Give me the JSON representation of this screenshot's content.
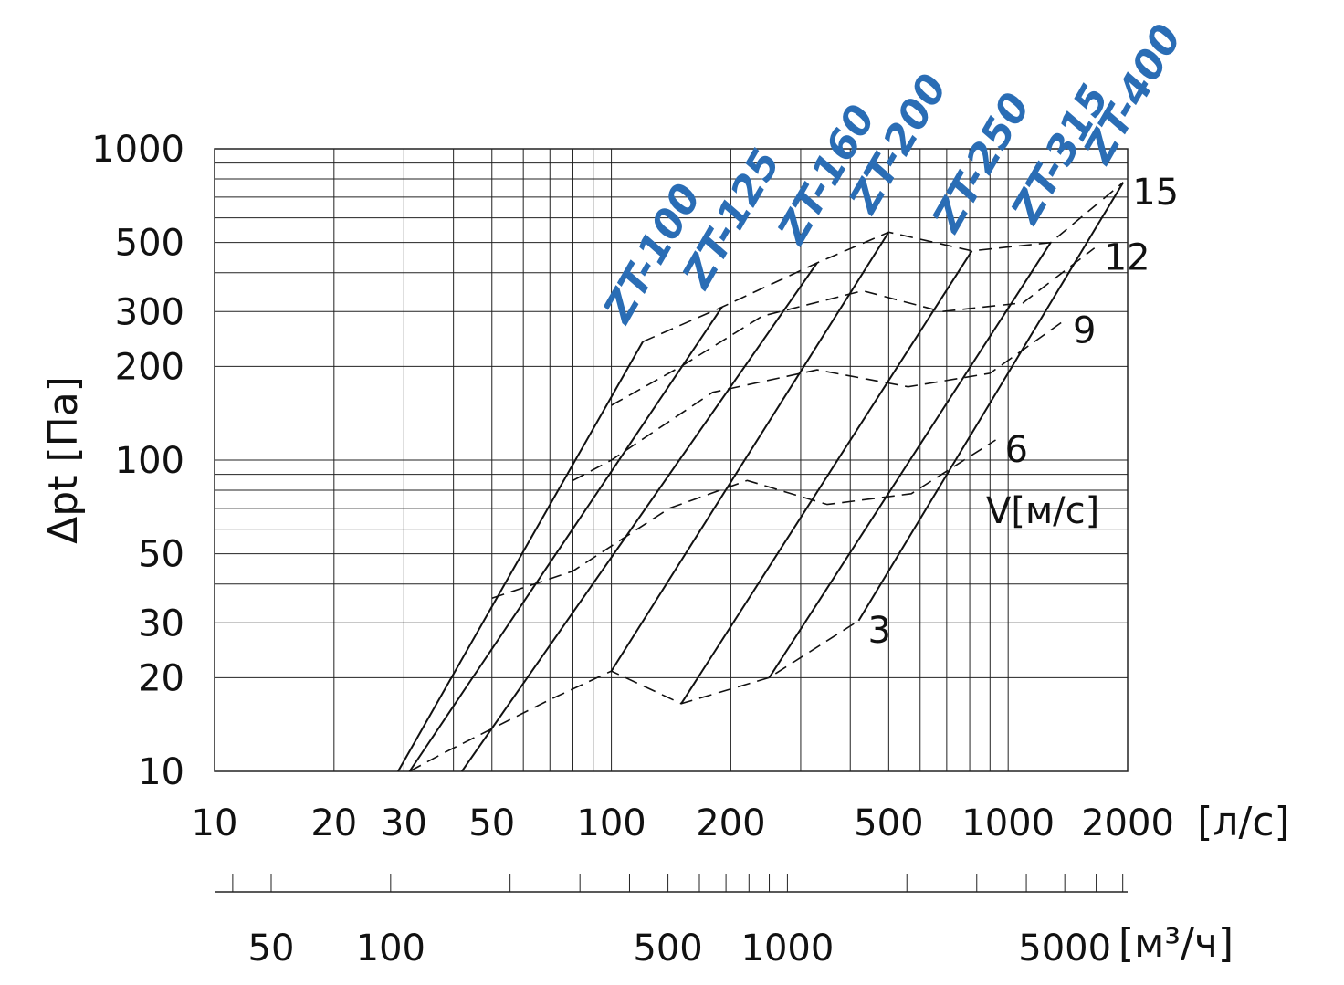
{
  "chart_data": {
    "type": "line",
    "xscale": "log",
    "yscale": "log",
    "xlim": [
      10,
      2000
    ],
    "ylim": [
      10,
      1000
    ],
    "xlabel": "[л/с]",
    "x2label": "[м³/ч]",
    "ylabel": "Δpt [Па]",
    "x_ticks": [
      "10",
      "20",
      "30",
      "50",
      "100",
      "200",
      "500",
      "1000",
      "2000"
    ],
    "x2_ticks": [
      "50",
      "100",
      "500",
      "1000",
      "5000"
    ],
    "y_ticks": [
      "10",
      "20",
      "30",
      "50",
      "100",
      "200",
      "300",
      "500",
      "1000"
    ],
    "grid": true,
    "models": [
      {
        "name": "ZT-100",
        "points": [
          [
            29,
            10
          ],
          [
            120,
            240
          ]
        ]
      },
      {
        "name": "ZT-125",
        "points": [
          [
            31,
            10
          ],
          [
            190,
            310
          ]
        ]
      },
      {
        "name": "ZT-160",
        "points": [
          [
            42,
            10
          ],
          [
            330,
            430
          ]
        ]
      },
      {
        "name": "ZT-200",
        "points": [
          [
            100,
            21
          ],
          [
            500,
            540
          ]
        ]
      },
      {
        "name": "ZT-250",
        "points": [
          [
            150,
            16.5
          ],
          [
            810,
            470
          ]
        ]
      },
      {
        "name": "ZT-315",
        "points": [
          [
            250,
            20
          ],
          [
            1280,
            500
          ]
        ]
      },
      {
        "name": "ZT-400",
        "points": [
          [
            420,
            30.5
          ],
          [
            1950,
            780
          ]
        ]
      }
    ],
    "velocity_label": "V[м/с]",
    "velocity_curves": [
      {
        "name": "3",
        "points": [
          [
            31,
            10
          ],
          [
            38,
            11.5
          ],
          [
            70,
            17
          ],
          [
            100,
            21
          ],
          [
            150,
            16.5
          ],
          [
            250,
            20
          ],
          [
            420,
            30.5
          ]
        ]
      },
      {
        "name": "6",
        "points": [
          [
            50,
            36
          ],
          [
            80,
            44
          ],
          [
            140,
            70
          ],
          [
            220,
            86
          ],
          [
            350,
            72
          ],
          [
            570,
            78
          ],
          [
            930,
            116
          ]
        ]
      },
      {
        "name": "9",
        "points": [
          [
            80,
            86
          ],
          [
            100,
            100
          ],
          [
            180,
            165
          ],
          [
            330,
            195
          ],
          [
            560,
            172
          ],
          [
            900,
            190
          ],
          [
            1380,
            280
          ]
        ]
      },
      {
        "name": "12",
        "points": [
          [
            100,
            150
          ],
          [
            150,
            200
          ],
          [
            240,
            290
          ],
          [
            430,
            350
          ],
          [
            680,
            300
          ],
          [
            1090,
            320
          ],
          [
            1650,
            480
          ]
        ]
      },
      {
        "name": "15",
        "points": [
          [
            120,
            240
          ],
          [
            190,
            310
          ],
          [
            330,
            430
          ],
          [
            500,
            540
          ],
          [
            810,
            470
          ],
          [
            1280,
            500
          ],
          [
            1950,
            780
          ]
        ]
      }
    ]
  }
}
